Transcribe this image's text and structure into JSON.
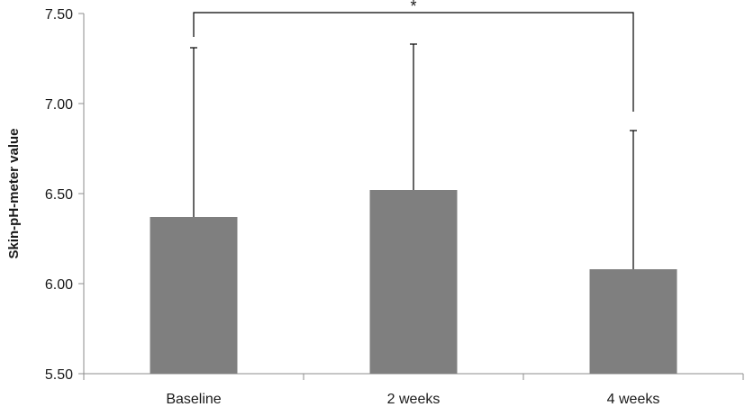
{
  "chart_data": {
    "type": "bar",
    "title": "",
    "xlabel": "",
    "ylabel": "Skin-pH-meter value",
    "categories": [
      "Baseline",
      "2 weeks",
      "4 weeks"
    ],
    "values": [
      6.37,
      6.52,
      6.08
    ],
    "error_upper": [
      7.31,
      7.33,
      6.85
    ],
    "ylim": [
      5.5,
      7.5
    ],
    "yticks": [
      "5.50",
      "6.00",
      "6.50",
      "7.00",
      "7.50"
    ],
    "ytick_values": [
      5.5,
      6.0,
      6.5,
      7.0,
      7.5
    ],
    "grid": false,
    "legend": "none",
    "bar_color": "#7f7f7f",
    "significance": {
      "label": "*",
      "from": "Baseline",
      "to": "4 weeks"
    }
  }
}
